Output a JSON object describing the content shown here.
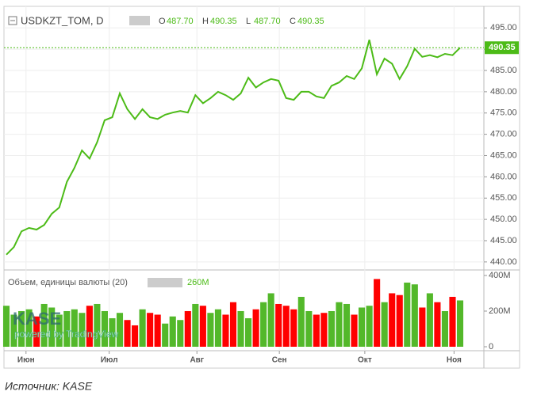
{
  "header": {
    "symbol": "USDKZT_TOM, D",
    "ohlc": [
      {
        "key": "O",
        "text": "487.70"
      },
      {
        "key": "H",
        "text": "490.35"
      },
      {
        "key": "L",
        "text": "487.70"
      },
      {
        "key": "C",
        "text": "490.35"
      }
    ]
  },
  "volume_legend": "Объем, единицы валюты (20)",
  "watermark": {
    "logo": "KASE",
    "powered": "powered by TradingView"
  },
  "caption": "Источник: KASE",
  "chart_data": [
    {
      "type": "line",
      "color": "#4cbb17",
      "grid": true,
      "values": [
        441.7,
        443.5,
        447.2,
        448,
        447.6,
        448.7,
        451.3,
        452.8,
        458.8,
        462.1,
        466.2,
        464.3,
        468.1,
        473.3,
        474,
        479.6,
        475.9,
        473.6,
        475.9,
        474,
        473.6,
        474.6,
        475.1,
        475.5,
        475.1,
        479.2,
        477.3,
        478.5,
        480,
        479.2,
        478.1,
        479.6,
        483.3,
        481,
        482.2,
        483,
        482.6,
        478.5,
        478.1,
        480,
        480,
        478.9,
        478.5,
        481.4,
        482.2,
        483.7,
        483,
        485.5,
        492.2,
        484.1,
        487.8,
        486.6,
        483,
        486,
        490.1,
        488.2,
        488.6,
        488.1,
        488.9,
        488.6,
        490.35
      ],
      "xlim": [
        0,
        60
      ],
      "xticks": [
        {
          "value": 2.6,
          "label": "Июн"
        },
        {
          "value": 13.6,
          "label": "Июл"
        },
        {
          "value": 25.2,
          "label": "Авг"
        },
        {
          "value": 36.1,
          "label": "Сен"
        },
        {
          "value": 47.4,
          "label": "Окт"
        },
        {
          "value": 59.2,
          "label": "Ноя"
        }
      ],
      "ylim": [
        438.3,
        499.7
      ],
      "yticks": [
        {
          "value": 440,
          "label": "440.00"
        },
        {
          "value": 445,
          "label": "445.00"
        },
        {
          "value": 450,
          "label": "450.00"
        },
        {
          "value": 455,
          "label": "455.00"
        },
        {
          "value": 460,
          "label": "460.00"
        },
        {
          "value": 465,
          "label": "465.00"
        },
        {
          "value": 470,
          "label": "470.00"
        },
        {
          "value": 475,
          "label": "475.00"
        },
        {
          "value": 480,
          "label": "480.00"
        },
        {
          "value": 485,
          "label": "485.00"
        },
        {
          "value": 490,
          "label": "490.00"
        },
        {
          "value": 495,
          "label": "495.00"
        }
      ]
    },
    {
      "type": "bar",
      "up_color": "#53b82a",
      "down_color": "#ff0000",
      "values": [
        230000000,
        180000000,
        200000000,
        210000000,
        170000000,
        240000000,
        220000000,
        180000000,
        200000000,
        210000000,
        190000000,
        230000000,
        240000000,
        200000000,
        160000000,
        190000000,
        150000000,
        120000000,
        210000000,
        190000000,
        180000000,
        130000000,
        170000000,
        150000000,
        200000000,
        240000000,
        230000000,
        190000000,
        210000000,
        180000000,
        250000000,
        200000000,
        160000000,
        210000000,
        250000000,
        300000000,
        240000000,
        230000000,
        210000000,
        280000000,
        200000000,
        180000000,
        190000000,
        200000000,
        250000000,
        240000000,
        180000000,
        220000000,
        230000000,
        380000000,
        250000000,
        300000000,
        290000000,
        360000000,
        350000000,
        220000000,
        300000000,
        250000000,
        200000000,
        280000000,
        260000000
      ],
      "value_labels": [
        null,
        null,
        null,
        null,
        null,
        null,
        null,
        null,
        null,
        null,
        null,
        null,
        null,
        null,
        null,
        null,
        null,
        null,
        null,
        null,
        null,
        null,
        null,
        null,
        null,
        null,
        null,
        null,
        null,
        null,
        null,
        null,
        null,
        null,
        null,
        null,
        null,
        null,
        null,
        null,
        null,
        null,
        null,
        null,
        null,
        null,
        null,
        null,
        null,
        null,
        null,
        null,
        null,
        null,
        null,
        null,
        null,
        null,
        null,
        null,
        "260M"
      ],
      "ylim": [
        -8900000,
        422000000
      ],
      "yticks": [
        {
          "value": 0,
          "label": "0"
        },
        {
          "value": 200000000,
          "label": "200M"
        },
        {
          "value": 400000000,
          "label": "400M"
        }
      ]
    }
  ]
}
